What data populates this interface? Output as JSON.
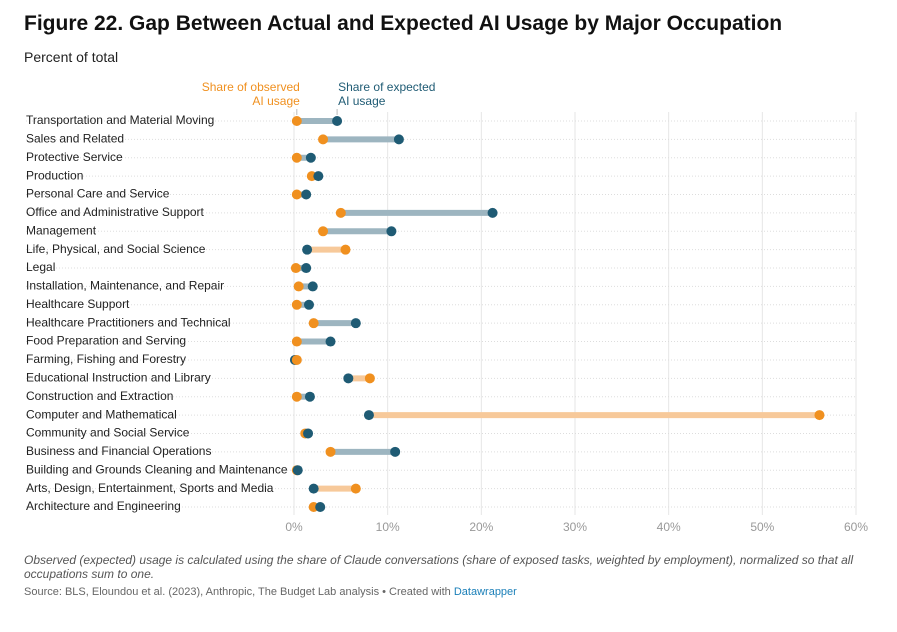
{
  "chart_data": {
    "type": "dumbbell",
    "title": "Figure 22. Gap Between Actual and Expected AI Usage by Major Occupation",
    "subtitle": "Percent of total",
    "categories": [
      "Transportation and Material Moving",
      "Sales and Related",
      "Protective Service",
      "Production",
      "Personal Care and Service",
      "Office and Administrative Support",
      "Management",
      "Life, Physical, and Social Science",
      "Legal",
      "Installation, Maintenance, and Repair",
      "Healthcare Support",
      "Healthcare Practitioners and Technical",
      "Food Preparation and Serving",
      "Farming, Fishing and Forestry",
      "Educational Instruction and Library",
      "Construction and Extraction",
      "Computer and Mathematical",
      "Community and Social Service",
      "Business and Financial Operations",
      "Building and Grounds Cleaning and Maintenance",
      "Arts, Design, Entertainment, Sports and Media",
      "Architecture and Engineering"
    ],
    "series": [
      {
        "name": "Share of observed AI usage",
        "color": "#f0901f",
        "line_color": "#f7c99a",
        "values": [
          0.3,
          3.1,
          0.3,
          1.9,
          0.3,
          5.0,
          3.1,
          5.5,
          0.2,
          0.5,
          0.3,
          2.1,
          0.3,
          0.3,
          8.1,
          0.3,
          56.1,
          1.2,
          3.9,
          0.3,
          6.6,
          2.1
        ]
      },
      {
        "name": "Share of expected AI usage",
        "color": "#1f5b74",
        "line_color": "#9db5c0",
        "values": [
          4.6,
          11.2,
          1.8,
          2.6,
          1.3,
          21.2,
          10.4,
          1.4,
          1.3,
          2.0,
          1.6,
          6.6,
          3.9,
          0.1,
          5.8,
          1.7,
          8.0,
          1.5,
          10.8,
          0.4,
          2.1,
          2.8
        ]
      }
    ],
    "xlim": [
      0,
      60
    ],
    "xticks": [
      {
        "value": 0,
        "label": "0%"
      },
      {
        "value": 10,
        "label": "10%"
      },
      {
        "value": 20,
        "label": "20%"
      },
      {
        "value": 30,
        "label": "30%"
      },
      {
        "value": 40,
        "label": "40%"
      },
      {
        "value": 50,
        "label": "50%"
      },
      {
        "value": 60,
        "label": "60%"
      }
    ],
    "grid": true,
    "note": "Observed (expected) usage is calculated using the share of Claude conversations (share of exposed tasks, weighted by employment), normalized so that all occupations sum to one.",
    "source": "Source: BLS, Eloundou et al. (2023), Anthropic, The Budget Lab analysis • Created with ",
    "source_link": "Datawrapper"
  }
}
